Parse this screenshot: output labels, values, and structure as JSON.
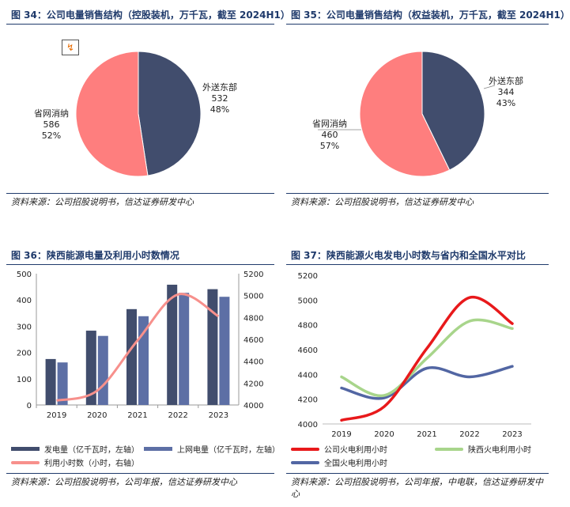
{
  "colors": {
    "navy": "#414d6d",
    "pink": "#fe7e7e",
    "blueBar": "#5d6fa5",
    "salmonLine": "#f7908c",
    "red": "#e8191b",
    "green": "#a8d58b",
    "blue": "#5266a3",
    "titleBlue": "#1f3a6b"
  },
  "panels": {
    "p34": {
      "title": "图 34：公司电量销售结构（控股装机，万千瓦，截至 2024H1）",
      "source": "资料来源：公司招股说明书，信达证券研发中心",
      "icon": "chart-edit-icon"
    },
    "p35": {
      "title": "图 35：公司电量销售结构（权益装机，万千瓦，截至 2024H1）",
      "source": "资料来源：公司招股说明书，信达证券研发中心"
    },
    "p36": {
      "title": "图 36：陕西能源电量及利用小时数情况",
      "source": "资料来源：公司招股说明书，公司年报，信达证券研发中心"
    },
    "p37": {
      "title": "图 37：陕西能源火电发电小时数与省内和全国水平对比",
      "source": "资料来源：公司招股说明书，公司年报，中电联，信达证券研发中心"
    }
  },
  "chart_data": [
    {
      "id": "pie34",
      "type": "pie",
      "title": "图 34：公司电量销售结构（控股装机，万千瓦，截至 2024H1）",
      "slices": [
        {
          "label": "外送东部",
          "value": 532,
          "pct": "48%",
          "color": "#414d6d"
        },
        {
          "label": "省网消纳",
          "value": 586,
          "pct": "52%",
          "color": "#fe7e7e"
        }
      ]
    },
    {
      "id": "pie35",
      "type": "pie",
      "title": "图 35：公司电量销售结构（权益装机，万千瓦，截至 2024H1）",
      "slices": [
        {
          "label": "外送东部",
          "value": 344,
          "pct": "43%",
          "color": "#414d6d"
        },
        {
          "label": "省网消纳",
          "value": 460,
          "pct": "57%",
          "color": "#fe7e7e"
        }
      ]
    },
    {
      "id": "combo36",
      "type": "bar",
      "title": "图 36：陕西能源电量及利用小时数情况",
      "categories": [
        "2019",
        "2020",
        "2021",
        "2022",
        "2023"
      ],
      "left_axis": {
        "min": 0,
        "max": 500,
        "ticks": [
          0,
          100,
          200,
          300,
          400,
          500
        ]
      },
      "right_axis": {
        "min": 4000,
        "max": 5200,
        "ticks": [
          4000,
          4200,
          4400,
          4600,
          4800,
          5000,
          5200
        ]
      },
      "series": [
        {
          "name": "发电量（亿千瓦时，左轴）",
          "type": "bar",
          "axis": "left",
          "color": "#414d6d",
          "values": [
            175,
            283,
            365,
            458,
            441
          ]
        },
        {
          "name": "上网电量（亿千瓦时，左轴）",
          "type": "bar",
          "axis": "left",
          "color": "#5d6fa5",
          "values": [
            162,
            263,
            338,
            427,
            412
          ]
        },
        {
          "name": "利用小时数（小时，右轴）",
          "type": "line",
          "axis": "right",
          "color": "#f7908c",
          "values": [
            4040,
            4130,
            4590,
            5010,
            4810
          ]
        }
      ]
    },
    {
      "id": "line37",
      "type": "line",
      "title": "图 37：陕西能源火电发电小时数与省内和全国水平对比",
      "categories": [
        "2019",
        "2020",
        "2021",
        "2022",
        "2023"
      ],
      "axis": {
        "min": 4000,
        "max": 5200,
        "ticks": [
          4000,
          4200,
          4400,
          4600,
          4800,
          5000,
          5200
        ]
      },
      "series": [
        {
          "name": "公司火电利用小时",
          "color": "#e8191b",
          "values": [
            4030,
            4140,
            4610,
            5020,
            4810
          ]
        },
        {
          "name": "陕西火电利用小时",
          "color": "#a8d58b",
          "values": [
            4380,
            4230,
            4530,
            4830,
            4770
          ]
        },
        {
          "name": "全国火电利用小时",
          "color": "#5266a3",
          "values": [
            4290,
            4210,
            4450,
            4380,
            4465
          ]
        }
      ]
    }
  ]
}
